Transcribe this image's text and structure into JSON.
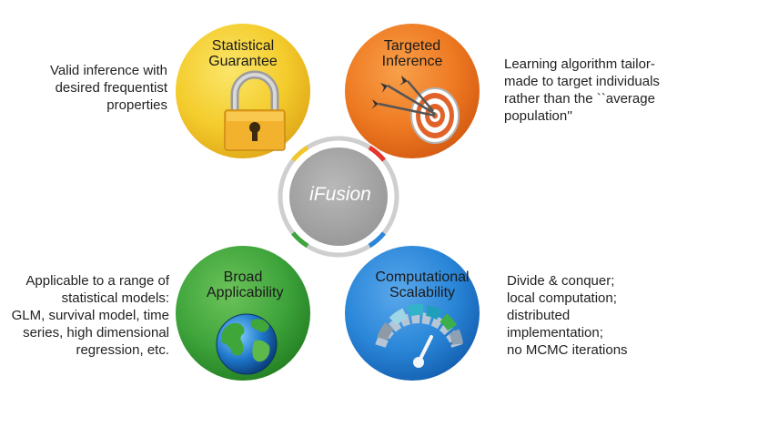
{
  "center": {
    "label": "iFusion"
  },
  "quadrants": [
    {
      "id": "statistical",
      "title_line1": "Statistical",
      "title_line2": "Guarantee",
      "icon": "padlock-icon",
      "color": "#f5cf2f",
      "description": [
        "Valid inference with",
        "desired frequentist",
        "properties"
      ]
    },
    {
      "id": "targeted",
      "title_line1": "Targeted",
      "title_line2": "Inference",
      "icon": "target-arrows-icon",
      "color": "#ee7a22",
      "description": [
        "Learning algorithm tailor-",
        "made to target individuals",
        "rather than the ``average",
        "population''"
      ]
    },
    {
      "id": "broad",
      "title_line1": "Broad",
      "title_line2": "Applicability",
      "icon": "globe-icon",
      "color": "#3ea43b",
      "description": [
        "Applicable to a range of",
        "statistical models:",
        "GLM, survival model, time",
        "series, high dimensional",
        "regression, etc."
      ]
    },
    {
      "id": "computational",
      "title_line1": "Computational",
      "title_line2": "Scalability",
      "icon": "speedometer-icon",
      "color": "#2a86d8",
      "description": [
        "Divide & conquer;",
        "local computation;",
        "distributed",
        "implementation;",
        "no MCMC iterations"
      ]
    }
  ]
}
